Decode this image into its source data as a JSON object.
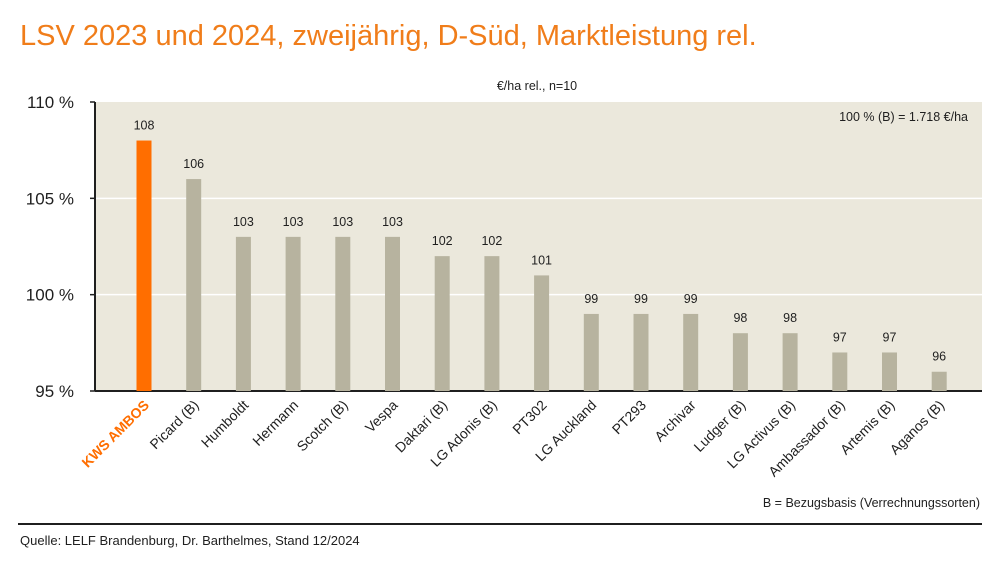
{
  "header": {
    "title": "LSV 2023 und 2024, zweijährig, D-Süd, Marktleistung rel."
  },
  "footer": {
    "source": "Quelle: LELF Brandenburg, Dr. Barthelmes, Stand 12/2024"
  },
  "colors": {
    "accent": "#ff6e00",
    "bar": "#b7b39f",
    "plot_bg": "#ebe8dc",
    "title": "#f07d1a",
    "text": "#1f1f1f"
  },
  "chart_data": {
    "type": "bar",
    "subtitle": "€/ha rel., n=10",
    "reference_note": "100 % (B) = 1.718 €/ha",
    "legend_note": "B = Bezugsbasis (Verrechnungssorten)",
    "categories": [
      "KWS AMBOS",
      "Picard (B)",
      "Humboldt",
      "Hermann",
      "Scotch (B)",
      "Vespa",
      "Daktari (B)",
      "LG Adonis (B)",
      "PT302",
      "LG Auckland",
      "PT293",
      "Archivar",
      "Ludger (B)",
      "LG Activus (B)",
      "Ambassador (B)",
      "Artemis (B)",
      "Aganos (B)"
    ],
    "values": [
      108,
      106,
      103,
      103,
      103,
      103,
      102,
      102,
      101,
      99,
      99,
      99,
      98,
      98,
      97,
      97,
      96
    ],
    "highlight_index": 0,
    "ylim": [
      95,
      110
    ],
    "yticks": [
      95,
      100,
      105,
      110
    ],
    "ytick_labels": [
      "95 %",
      "100 %",
      "105 %",
      "110 %"
    ],
    "grid": "horizontal",
    "xlabel": "",
    "ylabel": ""
  }
}
